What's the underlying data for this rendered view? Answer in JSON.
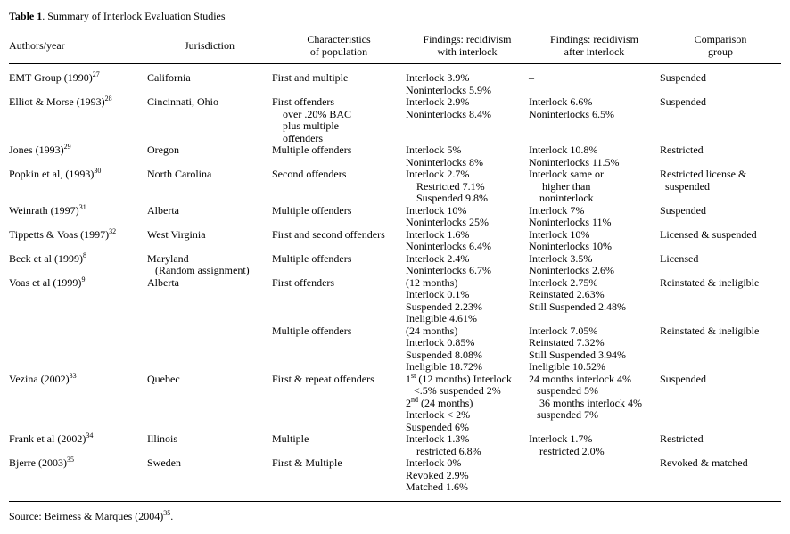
{
  "title": {
    "bold": "Table 1",
    "rest": ". Summary of Interlock Evaluation Studies"
  },
  "source": "Source: Beirness & Marques (2004)^{35}.",
  "table": {
    "columns": [
      {
        "label": "Authors/year"
      },
      {
        "label": "Jurisdiction"
      },
      {
        "label": "Characteristics\nof population"
      },
      {
        "label": "Findings: recidivism\nwith interlock"
      },
      {
        "label": "Findings: recidivism\nafter interlock"
      },
      {
        "label": "Comparison\ngroup"
      }
    ],
    "rows": [
      {
        "authors": [
          "EMT Group (1990)^{27}"
        ],
        "jurisdiction": [
          "California"
        ],
        "population": [
          "First and multiple"
        ],
        "with_interlock": [
          "Interlock 3.9%",
          "Noninterlocks 5.9%"
        ],
        "after_interlock": [
          "–"
        ],
        "comparison": [
          "Suspended"
        ]
      },
      {
        "authors": [
          "Elliot & Morse (1993)^{28}"
        ],
        "jurisdiction": [
          "Cincinnati, Ohio"
        ],
        "population": [
          "First offenders",
          "    over .20% BAC",
          "    plus multiple",
          "    offenders"
        ],
        "with_interlock": [
          "Interlock 2.9%",
          "Noninterlocks 8.4%"
        ],
        "after_interlock": [
          "Interlock 6.6%",
          "Noninterlocks 6.5%"
        ],
        "comparison": [
          "Suspended"
        ]
      },
      {
        "authors": [
          "Jones (1993)^{29}"
        ],
        "jurisdiction": [
          "Oregon"
        ],
        "population": [
          "Multiple offenders"
        ],
        "with_interlock": [
          "Interlock 5%",
          "Noninterlocks 8%"
        ],
        "after_interlock": [
          "Interlock 10.8%",
          "Noninterlocks 11.5%"
        ],
        "comparison": [
          "Restricted"
        ]
      },
      {
        "authors": [
          "Popkin et al, (1993)^{30}"
        ],
        "jurisdiction": [
          "North Carolina"
        ],
        "population": [
          "Second offenders"
        ],
        "with_interlock": [
          "Interlock 2.7%",
          "    Restricted 7.1%",
          "    Suspended 9.8%"
        ],
        "after_interlock": [
          "Interlock same or",
          "     higher than",
          "    noninterlock"
        ],
        "comparison": [
          "Restricted license &",
          "  suspended"
        ]
      },
      {
        "authors": [
          "Weinrath (1997)^{31}"
        ],
        "jurisdiction": [
          "Alberta"
        ],
        "population": [
          "Multiple offenders"
        ],
        "with_interlock": [
          "Interlock 10%",
          "Noninterlocks 25%"
        ],
        "after_interlock": [
          "Interlock 7%",
          "Noninterlocks 11%"
        ],
        "comparison": [
          "Suspended"
        ]
      },
      {
        "authors": [
          "Tippetts & Voas (1997)^{32}"
        ],
        "jurisdiction": [
          "West Virginia"
        ],
        "population": [
          "First and second offenders"
        ],
        "with_interlock": [
          "Interlock 1.6%",
          "Noninterlocks 6.4%"
        ],
        "after_interlock": [
          "Interlock 10%",
          "Noninterlocks 10%"
        ],
        "comparison": [
          "Licensed & suspended"
        ]
      },
      {
        "authors": [
          "Beck et al (1999)^{8}"
        ],
        "jurisdiction": [
          "Maryland",
          "   (Random assignment)"
        ],
        "population": [
          "Multiple offenders"
        ],
        "with_interlock": [
          "Interlock 2.4%",
          "Noninterlocks 6.7%"
        ],
        "after_interlock": [
          "Interlock 3.5%",
          "Noninterlocks 2.6%"
        ],
        "comparison": [
          "Licensed"
        ]
      },
      {
        "authors": [
          "Voas et al (1999)^{9}"
        ],
        "jurisdiction": [
          "Alberta"
        ],
        "population": [
          "First offenders"
        ],
        "with_interlock": [
          "(12 months)",
          "Interlock 0.1%",
          "Suspended 2.23%",
          "Ineligible 4.61%"
        ],
        "after_interlock": [
          "Interlock 2.75%",
          "Reinstated 2.63%",
          "Still Suspended 2.48%"
        ],
        "comparison": [
          "Reinstated & ineligible"
        ]
      },
      {
        "authors": [],
        "jurisdiction": [],
        "population": [
          "Multiple offenders"
        ],
        "with_interlock": [
          "(24 months)",
          "Interlock 0.85%",
          "Suspended 8.08%",
          "Ineligible 18.72%"
        ],
        "after_interlock": [
          "Interlock 7.05%",
          "Reinstated 7.32%",
          "Still Suspended 3.94%",
          "Ineligible 10.52%"
        ],
        "comparison": [
          "Reinstated & ineligible"
        ]
      },
      {
        "authors": [
          "Vezina (2002)^{33}"
        ],
        "jurisdiction": [
          "Quebec"
        ],
        "population": [
          "First & repeat offenders"
        ],
        "with_interlock": [
          "1^{st} (12 months) Interlock",
          "   <.5% suspended 2%",
          "2^{nd} (24 months)",
          "Interlock < 2%",
          "Suspended 6%"
        ],
        "after_interlock": [
          "24 months interlock 4%",
          "   suspended 5%",
          "    36 months interlock 4%",
          "   suspended 7%"
        ],
        "comparison": [
          "Suspended"
        ]
      },
      {
        "authors": [
          "Frank et al (2002)^{34}"
        ],
        "jurisdiction": [
          "Illinois"
        ],
        "population": [
          "Multiple"
        ],
        "with_interlock": [
          "Interlock 1.3%",
          "    restricted 6.8%"
        ],
        "after_interlock": [
          "Interlock 1.7%",
          "    restricted 2.0%"
        ],
        "comparison": [
          "Restricted"
        ]
      },
      {
        "authors": [
          "Bjerre (2003)^{35}"
        ],
        "jurisdiction": [
          "Sweden"
        ],
        "population": [
          "First & Multiple"
        ],
        "with_interlock": [
          "Interlock 0%",
          "Revoked 2.9%",
          "Matched 1.6%"
        ],
        "after_interlock": [
          "–"
        ],
        "comparison": [
          "Revoked & matched"
        ]
      }
    ]
  }
}
